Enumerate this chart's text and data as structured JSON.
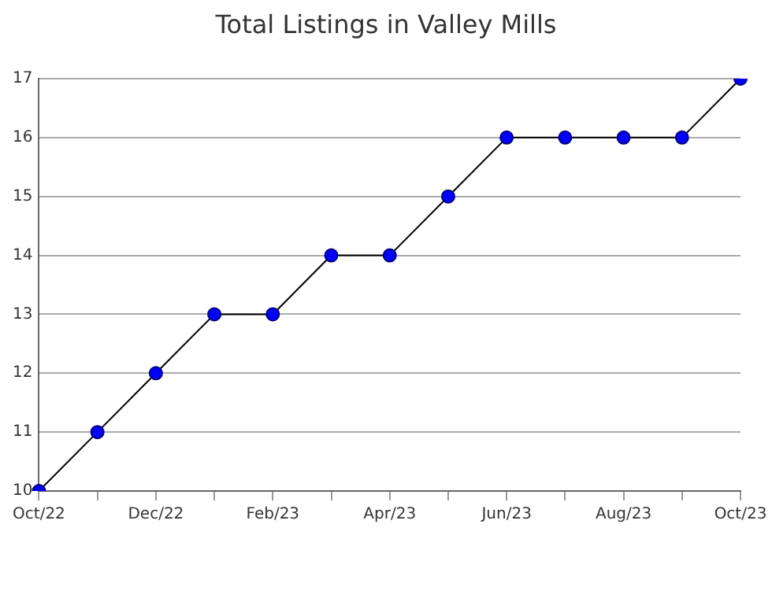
{
  "chart_data": {
    "type": "line",
    "title": "Total Listings in Valley Mills",
    "categories": [
      "Oct/22",
      null,
      "Dec/22",
      null,
      "Feb/23",
      null,
      "Apr/23",
      null,
      "Jun/23",
      null,
      "Aug/23",
      null,
      "Oct/23"
    ],
    "series": [
      {
        "color": "#0000ff",
        "values": [
          10,
          11,
          12,
          13,
          13,
          14,
          14,
          15,
          16,
          16,
          16,
          16,
          17
        ]
      }
    ],
    "ylim": [
      10,
      17
    ],
    "yticks": [
      10,
      11,
      12,
      13,
      14,
      15,
      16,
      17
    ],
    "grid": "y",
    "legend": false,
    "marker": "circle",
    "line_style": "solid"
  }
}
